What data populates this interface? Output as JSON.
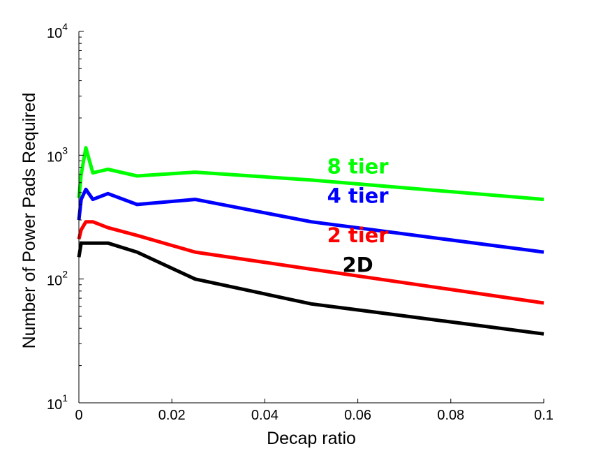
{
  "chart_data": {
    "type": "line",
    "title": "",
    "xlabel": "Decap ratio",
    "ylabel": "Number of Power Pads Required",
    "xlim": [
      0,
      0.1
    ],
    "ylim": [
      10,
      10000
    ],
    "yscale": "log",
    "grid": false,
    "x_ticks": [
      "0",
      "0.02",
      "0.04",
      "0.06",
      "0.08",
      "0.1"
    ],
    "y_ticks": [
      {
        "base": "10",
        "exp": "1"
      },
      {
        "base": "10",
        "exp": "2"
      },
      {
        "base": "10",
        "exp": "3"
      },
      {
        "base": "10",
        "exp": "4"
      }
    ],
    "series": [
      {
        "name": "8 tier",
        "color": "#00ff00",
        "x": [
          0,
          0.0005,
          0.0015,
          0.003,
          0.00625,
          0.0125,
          0.025,
          0.05,
          0.1
        ],
        "y": [
          450,
          700,
          1150,
          720,
          770,
          680,
          730,
          630,
          440
        ]
      },
      {
        "name": "4 tier",
        "color": "#0000ff",
        "x": [
          0,
          0.0005,
          0.0015,
          0.003,
          0.00625,
          0.0125,
          0.025,
          0.05,
          0.1
        ],
        "y": [
          300,
          440,
          530,
          440,
          490,
          400,
          440,
          290,
          165
        ]
      },
      {
        "name": "2 tier",
        "color": "#ff0000",
        "x": [
          0,
          0.0005,
          0.0015,
          0.003,
          0.00625,
          0.0125,
          0.025,
          0.05,
          0.1
        ],
        "y": [
          210,
          250,
          290,
          290,
          260,
          225,
          165,
          120,
          64
        ]
      },
      {
        "name": "2D",
        "color": "#000000",
        "x": [
          0,
          0.0005,
          0.0015,
          0.003,
          0.00625,
          0.0125,
          0.025,
          0.05,
          0.1
        ],
        "y": [
          150,
          195,
          195,
          195,
          195,
          165,
          100,
          63,
          36
        ]
      }
    ]
  }
}
